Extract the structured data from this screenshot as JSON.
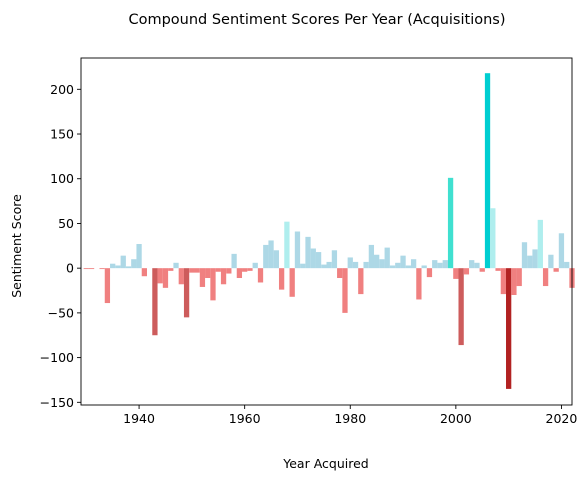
{
  "chart_data": {
    "type": "bar",
    "title": "Compound Sentiment Scores Per Year (Acquisitions)",
    "xlabel": "Year Acquired",
    "ylabel": "Sentiment Score",
    "xlim": [
      1929,
      2022
    ],
    "ylim": [
      -153,
      235
    ],
    "xticks": [
      1940,
      1960,
      1980,
      2000,
      2020
    ],
    "yticks": [
      -150,
      -100,
      -50,
      0,
      50,
      100,
      150,
      200
    ],
    "grid": false,
    "legend": "none",
    "color_scale": {
      "strong_positive": "#00ced1",
      "positive_high": "#40e0d0",
      "positive_mid": "#afeeee",
      "positive_low": "#add8e6",
      "negative_low": "#f08080",
      "negative_mid": "#cd5c5c",
      "negative_high": "#b22222"
    },
    "points": [
      {
        "x": 1930,
        "y": -1,
        "color": "#f08080"
      },
      {
        "x": 1931,
        "y": -1,
        "color": "#f08080"
      },
      {
        "x": 1933,
        "y": -1,
        "color": "#f08080"
      },
      {
        "x": 1934,
        "y": -39,
        "color": "#f08080"
      },
      {
        "x": 1935,
        "y": 5,
        "color": "#add8e6"
      },
      {
        "x": 1936,
        "y": 3,
        "color": "#add8e6"
      },
      {
        "x": 1937,
        "y": 14,
        "color": "#add8e6"
      },
      {
        "x": 1938,
        "y": 2,
        "color": "#add8e6"
      },
      {
        "x": 1939,
        "y": 10,
        "color": "#add8e6"
      },
      {
        "x": 1940,
        "y": 27,
        "color": "#add8e6"
      },
      {
        "x": 1941,
        "y": -9,
        "color": "#f08080"
      },
      {
        "x": 1943,
        "y": -75,
        "color": "#cd5c5c"
      },
      {
        "x": 1944,
        "y": -17,
        "color": "#f08080"
      },
      {
        "x": 1945,
        "y": -22,
        "color": "#f08080"
      },
      {
        "x": 1946,
        "y": -3,
        "color": "#f08080"
      },
      {
        "x": 1947,
        "y": 6,
        "color": "#add8e6"
      },
      {
        "x": 1948,
        "y": -18,
        "color": "#f08080"
      },
      {
        "x": 1949,
        "y": -55,
        "color": "#cd5c5c"
      },
      {
        "x": 1950,
        "y": -5,
        "color": "#f08080"
      },
      {
        "x": 1951,
        "y": -5,
        "color": "#f08080"
      },
      {
        "x": 1952,
        "y": -21,
        "color": "#f08080"
      },
      {
        "x": 1953,
        "y": -11,
        "color": "#f08080"
      },
      {
        "x": 1954,
        "y": -36,
        "color": "#f08080"
      },
      {
        "x": 1955,
        "y": -4,
        "color": "#f08080"
      },
      {
        "x": 1956,
        "y": -18,
        "color": "#f08080"
      },
      {
        "x": 1957,
        "y": -6,
        "color": "#f08080"
      },
      {
        "x": 1958,
        "y": 16,
        "color": "#add8e6"
      },
      {
        "x": 1959,
        "y": -11,
        "color": "#f08080"
      },
      {
        "x": 1960,
        "y": -4,
        "color": "#f08080"
      },
      {
        "x": 1961,
        "y": -3,
        "color": "#f08080"
      },
      {
        "x": 1962,
        "y": 6,
        "color": "#add8e6"
      },
      {
        "x": 1963,
        "y": -16,
        "color": "#f08080"
      },
      {
        "x": 1964,
        "y": 26,
        "color": "#add8e6"
      },
      {
        "x": 1965,
        "y": 31,
        "color": "#add8e6"
      },
      {
        "x": 1966,
        "y": 20,
        "color": "#add8e6"
      },
      {
        "x": 1967,
        "y": -24,
        "color": "#f08080"
      },
      {
        "x": 1968,
        "y": 52,
        "color": "#afeeee"
      },
      {
        "x": 1969,
        "y": -32,
        "color": "#f08080"
      },
      {
        "x": 1970,
        "y": 41,
        "color": "#add8e6"
      },
      {
        "x": 1971,
        "y": 5,
        "color": "#add8e6"
      },
      {
        "x": 1972,
        "y": 35,
        "color": "#add8e6"
      },
      {
        "x": 1973,
        "y": 22,
        "color": "#add8e6"
      },
      {
        "x": 1974,
        "y": 18,
        "color": "#add8e6"
      },
      {
        "x": 1975,
        "y": 4,
        "color": "#add8e6"
      },
      {
        "x": 1976,
        "y": 7,
        "color": "#add8e6"
      },
      {
        "x": 1977,
        "y": 20,
        "color": "#add8e6"
      },
      {
        "x": 1978,
        "y": -11,
        "color": "#f08080"
      },
      {
        "x": 1979,
        "y": -50,
        "color": "#f08080"
      },
      {
        "x": 1980,
        "y": 12,
        "color": "#add8e6"
      },
      {
        "x": 1981,
        "y": 7,
        "color": "#add8e6"
      },
      {
        "x": 1982,
        "y": -29,
        "color": "#f08080"
      },
      {
        "x": 1983,
        "y": 7,
        "color": "#add8e6"
      },
      {
        "x": 1984,
        "y": 26,
        "color": "#add8e6"
      },
      {
        "x": 1985,
        "y": 15,
        "color": "#add8e6"
      },
      {
        "x": 1986,
        "y": 10,
        "color": "#add8e6"
      },
      {
        "x": 1987,
        "y": 23,
        "color": "#add8e6"
      },
      {
        "x": 1988,
        "y": 3,
        "color": "#add8e6"
      },
      {
        "x": 1989,
        "y": 6,
        "color": "#add8e6"
      },
      {
        "x": 1990,
        "y": 14,
        "color": "#add8e6"
      },
      {
        "x": 1991,
        "y": 3,
        "color": "#add8e6"
      },
      {
        "x": 1992,
        "y": 10,
        "color": "#add8e6"
      },
      {
        "x": 1993,
        "y": -35,
        "color": "#f08080"
      },
      {
        "x": 1994,
        "y": 3,
        "color": "#add8e6"
      },
      {
        "x": 1995,
        "y": -10,
        "color": "#f08080"
      },
      {
        "x": 1996,
        "y": 9,
        "color": "#add8e6"
      },
      {
        "x": 1997,
        "y": 6,
        "color": "#add8e6"
      },
      {
        "x": 1998,
        "y": 9,
        "color": "#add8e6"
      },
      {
        "x": 1999,
        "y": 101,
        "color": "#40e0d0"
      },
      {
        "x": 2000,
        "y": -12,
        "color": "#f08080"
      },
      {
        "x": 2001,
        "y": -86,
        "color": "#cd5c5c"
      },
      {
        "x": 2002,
        "y": -7,
        "color": "#f08080"
      },
      {
        "x": 2003,
        "y": 9,
        "color": "#add8e6"
      },
      {
        "x": 2004,
        "y": 6,
        "color": "#add8e6"
      },
      {
        "x": 2005,
        "y": -4,
        "color": "#f08080"
      },
      {
        "x": 2006,
        "y": 218,
        "color": "#00ced1"
      },
      {
        "x": 2007,
        "y": 67,
        "color": "#afeeee"
      },
      {
        "x": 2008,
        "y": -3,
        "color": "#f08080"
      },
      {
        "x": 2009,
        "y": -29,
        "color": "#f08080"
      },
      {
        "x": 2010,
        "y": -135,
        "color": "#b22222"
      },
      {
        "x": 2011,
        "y": -30,
        "color": "#f08080"
      },
      {
        "x": 2012,
        "y": -20,
        "color": "#f08080"
      },
      {
        "x": 2013,
        "y": 29,
        "color": "#add8e6"
      },
      {
        "x": 2014,
        "y": 14,
        "color": "#add8e6"
      },
      {
        "x": 2015,
        "y": 21,
        "color": "#add8e6"
      },
      {
        "x": 2016,
        "y": 54,
        "color": "#afeeee"
      },
      {
        "x": 2017,
        "y": -20,
        "color": "#f08080"
      },
      {
        "x": 2018,
        "y": 15,
        "color": "#add8e6"
      },
      {
        "x": 2019,
        "y": -4,
        "color": "#f08080"
      },
      {
        "x": 2020,
        "y": 39,
        "color": "#add8e6"
      },
      {
        "x": 2021,
        "y": 7,
        "color": "#add8e6"
      },
      {
        "x": 2022,
        "y": -22,
        "color": "#f08080"
      }
    ]
  }
}
